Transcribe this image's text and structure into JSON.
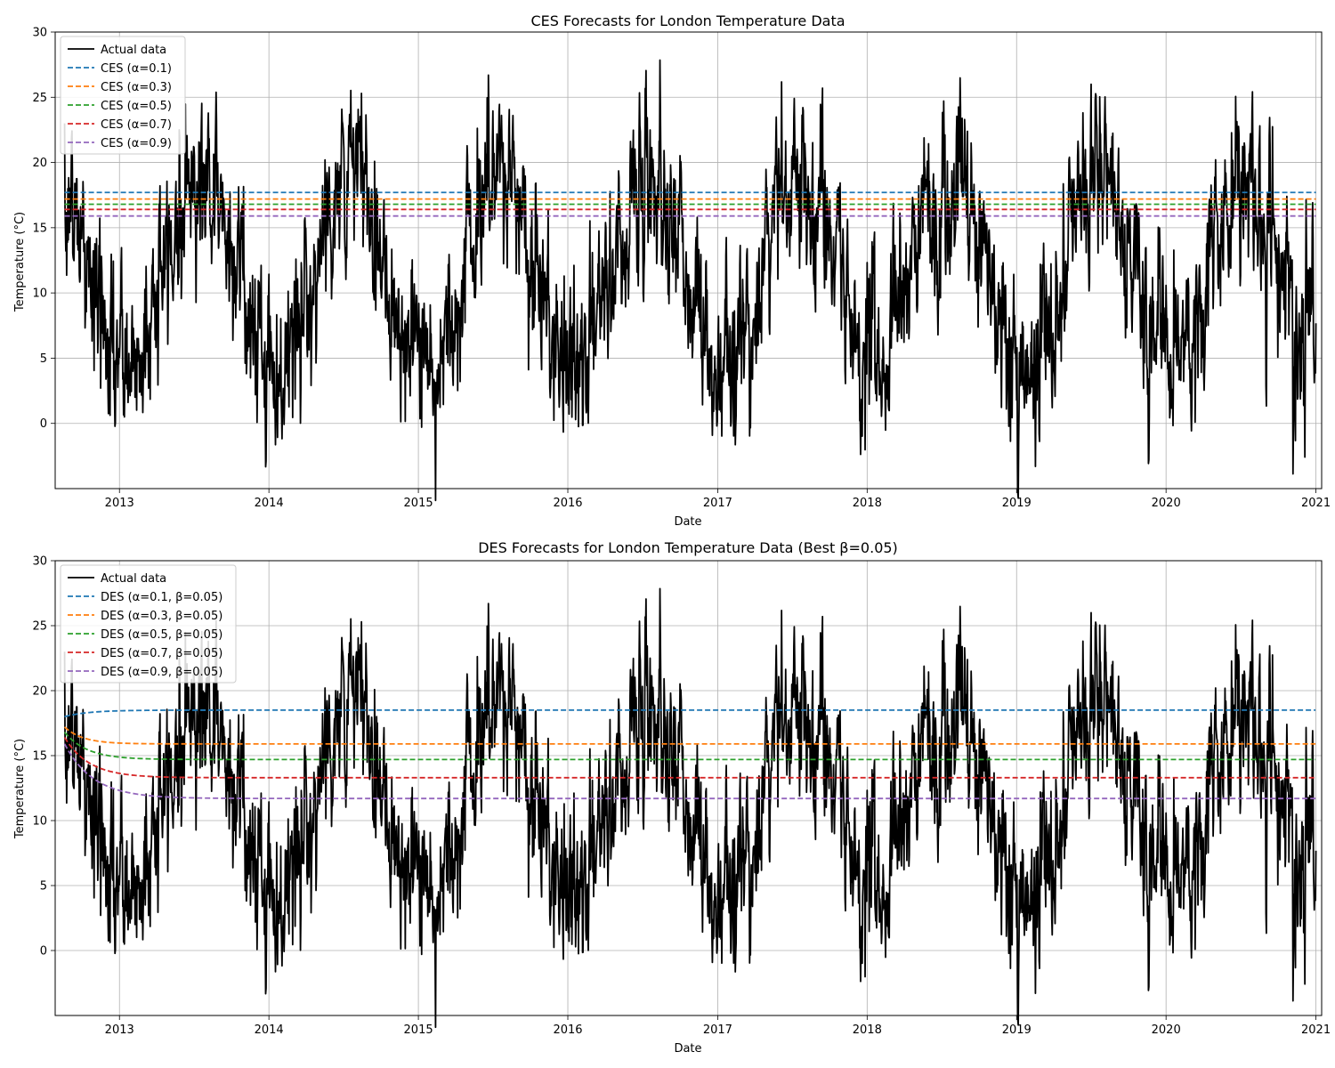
{
  "chart_data": [
    {
      "type": "line",
      "title": "CES Forecasts for London Temperature Data",
      "xlabel": "Date",
      "ylabel": "Temperature (°C)",
      "x_range": [
        "2012-07-28",
        "2021-01-15"
      ],
      "ylim": [
        -5,
        30
      ],
      "x_ticks": [
        "2013",
        "2014",
        "2015",
        "2016",
        "2017",
        "2018",
        "2019",
        "2020",
        "2021"
      ],
      "y_ticks": [
        "0",
        "5",
        "10",
        "15",
        "20",
        "25",
        "30"
      ],
      "grid": true,
      "legend_position": "upper-left",
      "actual": {
        "name": "Actual data",
        "color": "#000000",
        "start": "2012-08-20",
        "end": "2021-01-01",
        "annual_mean": 11.7,
        "seasonal_amplitude": 7.4,
        "peak_day_of_year": 200,
        "daily_noise": 3.3,
        "initial_value": 23
      },
      "series": [
        {
          "name": "CES (α=0.1)",
          "color": "#1f77b4",
          "values": [
            17.7,
            17.7
          ]
        },
        {
          "name": "CES (α=0.3)",
          "color": "#ff7f0e",
          "values": [
            17.2,
            17.2
          ]
        },
        {
          "name": "CES (α=0.5)",
          "color": "#2ca02c",
          "values": [
            16.8,
            16.8
          ]
        },
        {
          "name": "CES (α=0.7)",
          "color": "#d62728",
          "values": [
            16.4,
            16.4
          ]
        },
        {
          "name": "CES (α=0.9)",
          "color": "#9467bd",
          "values": [
            15.9,
            15.9
          ]
        }
      ]
    },
    {
      "type": "line",
      "title": "DES Forecasts for London Temperature Data (Best β=0.05)",
      "xlabel": "Date",
      "ylabel": "Temperature (°C)",
      "x_range": [
        "2012-07-28",
        "2021-01-15"
      ],
      "ylim": [
        -5,
        30
      ],
      "x_ticks": [
        "2013",
        "2014",
        "2015",
        "2016",
        "2017",
        "2018",
        "2019",
        "2020",
        "2021"
      ],
      "y_ticks": [
        "0",
        "5",
        "10",
        "15",
        "20",
        "25",
        "30"
      ],
      "grid": true,
      "legend_position": "upper-left",
      "actual": {
        "name": "Actual data",
        "color": "#000000",
        "start": "2012-08-20",
        "end": "2021-01-01",
        "annual_mean": 11.7,
        "seasonal_amplitude": 7.4,
        "peak_day_of_year": 200,
        "daily_noise": 3.3,
        "initial_value": 23
      },
      "series": [
        {
          "name": "DES (α=0.1, β=0.05)",
          "color": "#1f77b4",
          "start_value": 18.0,
          "level": 18.5,
          "decay_days": 60
        },
        {
          "name": "DES (α=0.3, β=0.05)",
          "color": "#ff7f0e",
          "start_value": 17.2,
          "level": 15.9,
          "decay_days": 45
        },
        {
          "name": "DES (α=0.5, β=0.05)",
          "color": "#2ca02c",
          "start_value": 16.8,
          "level": 14.7,
          "decay_days": 55
        },
        {
          "name": "DES (α=0.7, β=0.05)",
          "color": "#d62728",
          "start_value": 16.4,
          "level": 13.3,
          "decay_days": 60
        },
        {
          "name": "DES (α=0.9, β=0.05)",
          "color": "#9467bd",
          "start_value": 15.9,
          "level": 11.7,
          "decay_days": 70
        }
      ]
    }
  ]
}
